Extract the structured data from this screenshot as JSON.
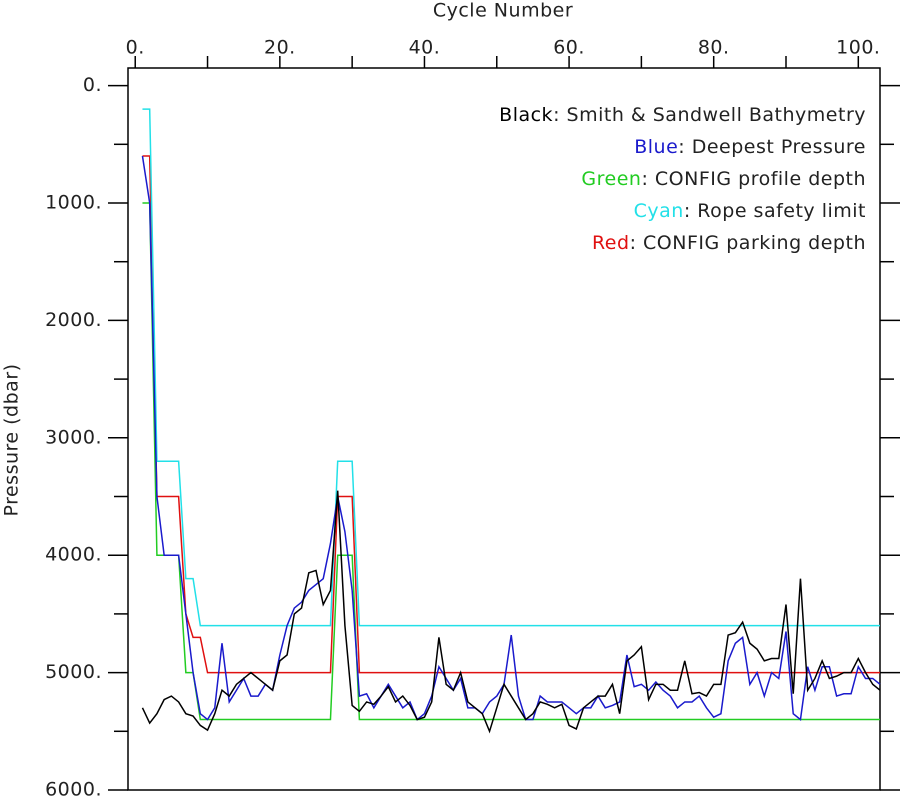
{
  "chart_data": {
    "type": "line",
    "xlabel": "Cycle Number",
    "ylabel": "Pressure (dbar)",
    "xlim": [
      -1,
      103
    ],
    "ylim": [
      -150,
      6000
    ],
    "y_inverted": true,
    "xaxis_position": "top",
    "xticks": [
      {
        "value": 0,
        "label": "0."
      },
      {
        "value": 20,
        "label": "20."
      },
      {
        "value": 40,
        "label": "40."
      },
      {
        "value": 60,
        "label": "60."
      },
      {
        "value": 80,
        "label": "80."
      },
      {
        "value": 100,
        "label": "100."
      }
    ],
    "xminor_ticks": [
      10,
      30,
      50,
      70,
      90
    ],
    "yticks": [
      {
        "value": 0,
        "label": "0."
      },
      {
        "value": 1000,
        "label": "1000."
      },
      {
        "value": 2000,
        "label": "2000."
      },
      {
        "value": 3000,
        "label": "3000."
      },
      {
        "value": 4000,
        "label": "4000."
      },
      {
        "value": 5000,
        "label": "5000."
      },
      {
        "value": 6000,
        "label": "6000."
      }
    ],
    "yminor_ticks": [
      500,
      1500,
      2500,
      3500,
      4500,
      5500
    ],
    "legend_separator": ": ",
    "legend_position": "upper right",
    "x": [
      1,
      2,
      3,
      4,
      5,
      6,
      7,
      8,
      9,
      10,
      11,
      12,
      13,
      14,
      15,
      16,
      17,
      18,
      19,
      20,
      21,
      22,
      23,
      24,
      25,
      26,
      27,
      28,
      29,
      30,
      31,
      32,
      33,
      34,
      35,
      36,
      37,
      38,
      39,
      40,
      41,
      42,
      43,
      44,
      45,
      46,
      47,
      48,
      49,
      50,
      51,
      52,
      53,
      54,
      55,
      56,
      57,
      58,
      59,
      60,
      61,
      62,
      63,
      64,
      65,
      66,
      67,
      68,
      69,
      70,
      71,
      72,
      73,
      74,
      75,
      76,
      77,
      78,
      79,
      80,
      81,
      82,
      83,
      84,
      85,
      86,
      87,
      88,
      89,
      90,
      91,
      92,
      93,
      94,
      95,
      96,
      97,
      98,
      99,
      100,
      101,
      102,
      103
    ],
    "series": [
      {
        "name": "Smith & Sandwell Bathymetry",
        "color_word": "Black",
        "color": "#000000",
        "values": [
          5300,
          5430,
          5350,
          5230,
          5200,
          5250,
          5350,
          5370,
          5450,
          5490,
          5350,
          5150,
          5200,
          5100,
          5050,
          5000,
          5050,
          5100,
          5150,
          4900,
          4850,
          4500,
          4450,
          4150,
          4130,
          4420,
          4300,
          3450,
          4600,
          5280,
          5330,
          5250,
          5270,
          5200,
          5120,
          5250,
          5200,
          5280,
          5400,
          5380,
          5250,
          4700,
          5100,
          5150,
          5000,
          5250,
          5300,
          5350,
          5500,
          5300,
          5100,
          5200,
          5300,
          5400,
          5350,
          5250,
          5270,
          5300,
          5270,
          5450,
          5480,
          5300,
          5250,
          5200,
          5200,
          5100,
          5350,
          4900,
          4850,
          4780,
          5230,
          5100,
          5100,
          5150,
          5150,
          4900,
          5180,
          5170,
          5200,
          5100,
          5100,
          4680,
          4660,
          4570,
          4750,
          4800,
          4900,
          4880,
          4880,
          4420,
          5180,
          4200,
          5150,
          5050,
          4900,
          5050,
          5030,
          5000,
          5000,
          4880,
          5000,
          5100,
          5150
        ]
      },
      {
        "name": "Deepest Pressure",
        "color_word": "Blue",
        "color": "#1a1acc",
        "values": [
          600,
          1000,
          3500,
          4000,
          4000,
          4000,
          4500,
          5000,
          5350,
          5400,
          5300,
          4750,
          5250,
          5150,
          5050,
          5200,
          5200,
          5100,
          5150,
          4850,
          4600,
          4450,
          4400,
          4300,
          4250,
          4200,
          3900,
          3500,
          3800,
          4300,
          5200,
          5180,
          5300,
          5200,
          5100,
          5200,
          5300,
          5250,
          5400,
          5350,
          5200,
          4950,
          5050,
          5150,
          5050,
          5300,
          5300,
          5350,
          5250,
          5200,
          5100,
          4680,
          5200,
          5400,
          5400,
          5200,
          5250,
          5250,
          5250,
          5300,
          5350,
          5300,
          5300,
          5200,
          5300,
          5280,
          5250,
          4850,
          5120,
          5100,
          5150,
          5080,
          5150,
          5200,
          5300,
          5250,
          5250,
          5200,
          5300,
          5380,
          5350,
          4900,
          4750,
          4700,
          5100,
          5000,
          5200,
          5000,
          5050,
          4650,
          5350,
          5400,
          4950,
          5150,
          4950,
          4950,
          5200,
          5180,
          5180,
          4950,
          5050,
          5050,
          5100
        ]
      },
      {
        "name": "CONFIG profile depth",
        "color_word": "Green",
        "color": "#22cc22",
        "values": [
          1000,
          1000,
          4000,
          4000,
          4000,
          4000,
          5000,
          5000,
          5400,
          5400,
          5400,
          5400,
          5400,
          5400,
          5400,
          5400,
          5400,
          5400,
          5400,
          5400,
          5400,
          5400,
          5400,
          5400,
          5400,
          5400,
          5400,
          4000,
          4000,
          4000,
          5400,
          5400,
          5400,
          5400,
          5400,
          5400,
          5400,
          5400,
          5400,
          5400,
          5400,
          5400,
          5400,
          5400,
          5400,
          5400,
          5400,
          5400,
          5400,
          5400,
          5400,
          5400,
          5400,
          5400,
          5400,
          5400,
          5400,
          5400,
          5400,
          5400,
          5400,
          5400,
          5400,
          5400,
          5400,
          5400,
          5400,
          5400,
          5400,
          5400,
          5400,
          5400,
          5400,
          5400,
          5400,
          5400,
          5400,
          5400,
          5400,
          5400,
          5400,
          5400,
          5400,
          5400,
          5400,
          5400,
          5400,
          5400,
          5400,
          5400,
          5400,
          5400,
          5400,
          5400,
          5400,
          5400,
          5400,
          5400,
          5400,
          5400,
          5400,
          5400,
          5400
        ]
      },
      {
        "name": "Rope safety limit",
        "color_word": "Cyan",
        "color": "#22e0e8",
        "values": [
          200,
          200,
          3200,
          3200,
          3200,
          3200,
          4200,
          4200,
          4600,
          4600,
          4600,
          4600,
          4600,
          4600,
          4600,
          4600,
          4600,
          4600,
          4600,
          4600,
          4600,
          4600,
          4600,
          4600,
          4600,
          4600,
          4600,
          3200,
          3200,
          3200,
          4600,
          4600,
          4600,
          4600,
          4600,
          4600,
          4600,
          4600,
          4600,
          4600,
          4600,
          4600,
          4600,
          4600,
          4600,
          4600,
          4600,
          4600,
          4600,
          4600,
          4600,
          4600,
          4600,
          4600,
          4600,
          4600,
          4600,
          4600,
          4600,
          4600,
          4600,
          4600,
          4600,
          4600,
          4600,
          4600,
          4600,
          4600,
          4600,
          4600,
          4600,
          4600,
          4600,
          4600,
          4600,
          4600,
          4600,
          4600,
          4600,
          4600,
          4600,
          4600,
          4600,
          4600,
          4600,
          4600,
          4600,
          4600,
          4600,
          4600,
          4600,
          4600,
          4600,
          4600,
          4600,
          4600,
          4600,
          4600,
          4600,
          4600,
          4600,
          4600,
          4600
        ]
      },
      {
        "name": "CONFIG parking depth",
        "color_word": "Red",
        "color": "#e01010",
        "values": [
          600,
          600,
          3500,
          3500,
          3500,
          3500,
          4500,
          4700,
          4700,
          5000,
          5000,
          5000,
          5000,
          5000,
          5000,
          5000,
          5000,
          5000,
          5000,
          5000,
          5000,
          5000,
          5000,
          5000,
          5000,
          5000,
          5000,
          3500,
          3500,
          3500,
          5000,
          5000,
          5000,
          5000,
          5000,
          5000,
          5000,
          5000,
          5000,
          5000,
          5000,
          5000,
          5000,
          5000,
          5000,
          5000,
          5000,
          5000,
          5000,
          5000,
          5000,
          5000,
          5000,
          5000,
          5000,
          5000,
          5000,
          5000,
          5000,
          5000,
          5000,
          5000,
          5000,
          5000,
          5000,
          5000,
          5000,
          5000,
          5000,
          5000,
          5000,
          5000,
          5000,
          5000,
          5000,
          5000,
          5000,
          5000,
          5000,
          5000,
          5000,
          5000,
          5000,
          5000,
          5000,
          5000,
          5000,
          5000,
          5000,
          5000,
          5000,
          5000,
          5000,
          5000,
          5000,
          5000,
          5000,
          5000,
          5000,
          5000,
          5000,
          5000,
          5000
        ]
      }
    ]
  }
}
